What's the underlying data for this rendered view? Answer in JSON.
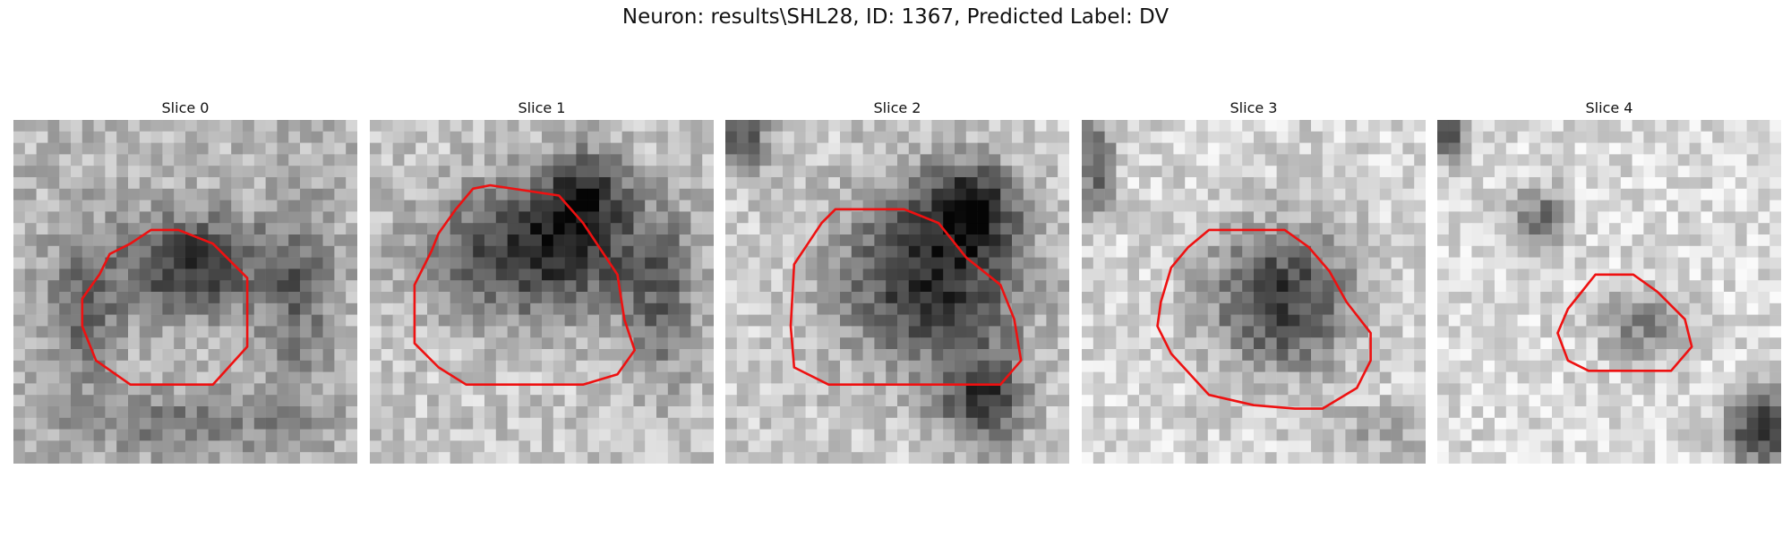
{
  "figure": {
    "title": "Neuron: results\\SHL28, ID: 1367, Predicted Label: DV"
  },
  "panels": [
    {
      "title": "Slice 0"
    },
    {
      "title": "Slice 1"
    },
    {
      "title": "Slice 2"
    },
    {
      "title": "Slice 3"
    },
    {
      "title": "Slice 4"
    }
  ],
  "colors": {
    "contour": "#ee1111",
    "background": "#ffffff"
  }
}
